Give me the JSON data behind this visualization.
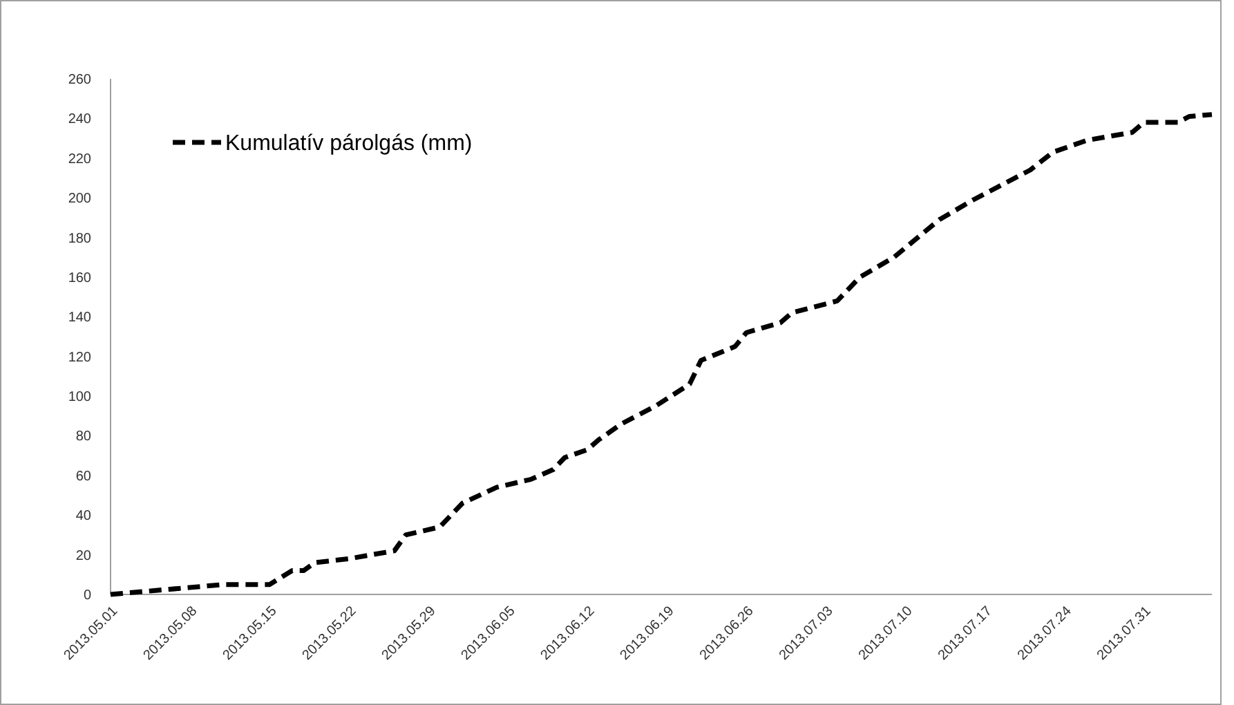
{
  "chart_data": {
    "type": "line",
    "x": [
      "2013-05-01",
      "2013-05-05",
      "2013-05-07",
      "2013-05-11",
      "2013-05-15",
      "2013-05-17",
      "2013-05-18",
      "2013-05-19",
      "2013-05-22",
      "2013-05-24",
      "2013-05-26",
      "2013-05-27",
      "2013-05-30",
      "2013-06-01",
      "2013-06-04",
      "2013-06-07",
      "2013-06-09",
      "2013-06-10",
      "2013-06-12",
      "2013-06-13",
      "2013-06-15",
      "2013-06-18",
      "2013-06-21",
      "2013-06-22",
      "2013-06-25",
      "2013-06-26",
      "2013-06-29",
      "2013-06-30",
      "2013-07-04",
      "2013-07-06",
      "2013-07-09",
      "2013-07-13",
      "2013-07-16",
      "2013-07-21",
      "2013-07-23",
      "2013-07-26",
      "2013-07-30",
      "2013-07-31",
      "2013-08-03",
      "2013-08-04",
      "2013-08-06"
    ],
    "series": [
      {
        "name": "Kumulatív párolgás (mm)",
        "color": "#000000",
        "values": [
          0,
          2,
          3,
          5,
          5,
          12,
          12,
          16,
          18,
          20,
          22,
          30,
          34,
          46,
          54,
          58,
          63,
          69,
          73,
          78,
          86,
          95,
          106,
          118,
          125,
          132,
          137,
          142,
          148,
          160,
          170,
          189,
          199,
          214,
          223,
          229,
          233,
          238,
          238,
          241,
          242
        ]
      }
    ],
    "xlim": [
      "2013-05-01",
      "2013-08-06"
    ],
    "xticks": [
      {
        "value": "2013-05-01",
        "label": "2013.05.01"
      },
      {
        "value": "2013-05-08",
        "label": "2013.05.08"
      },
      {
        "value": "2013-05-15",
        "label": "2013.05.15"
      },
      {
        "value": "2013-05-22",
        "label": "2013.05.22"
      },
      {
        "value": "2013-05-29",
        "label": "2013.05.29"
      },
      {
        "value": "2013-06-05",
        "label": "2013.06.05"
      },
      {
        "value": "2013-06-12",
        "label": "2013.06.12"
      },
      {
        "value": "2013-06-19",
        "label": "2013.06.19"
      },
      {
        "value": "2013-06-26",
        "label": "2013.06.26"
      },
      {
        "value": "2013-07-03",
        "label": "2013.07.03"
      },
      {
        "value": "2013-07-10",
        "label": "2013.07.10"
      },
      {
        "value": "2013-07-17",
        "label": "2013.07.17"
      },
      {
        "value": "2013-07-24",
        "label": "2013.07.24"
      },
      {
        "value": "2013-07-31",
        "label": "2013.07.31"
      }
    ],
    "ylim": [
      0,
      260
    ],
    "yticks": [
      0,
      20,
      40,
      60,
      80,
      100,
      120,
      140,
      160,
      180,
      200,
      220,
      240,
      260
    ],
    "grid": false,
    "legend": "top left",
    "line_style": "dashed",
    "marker": "none"
  }
}
